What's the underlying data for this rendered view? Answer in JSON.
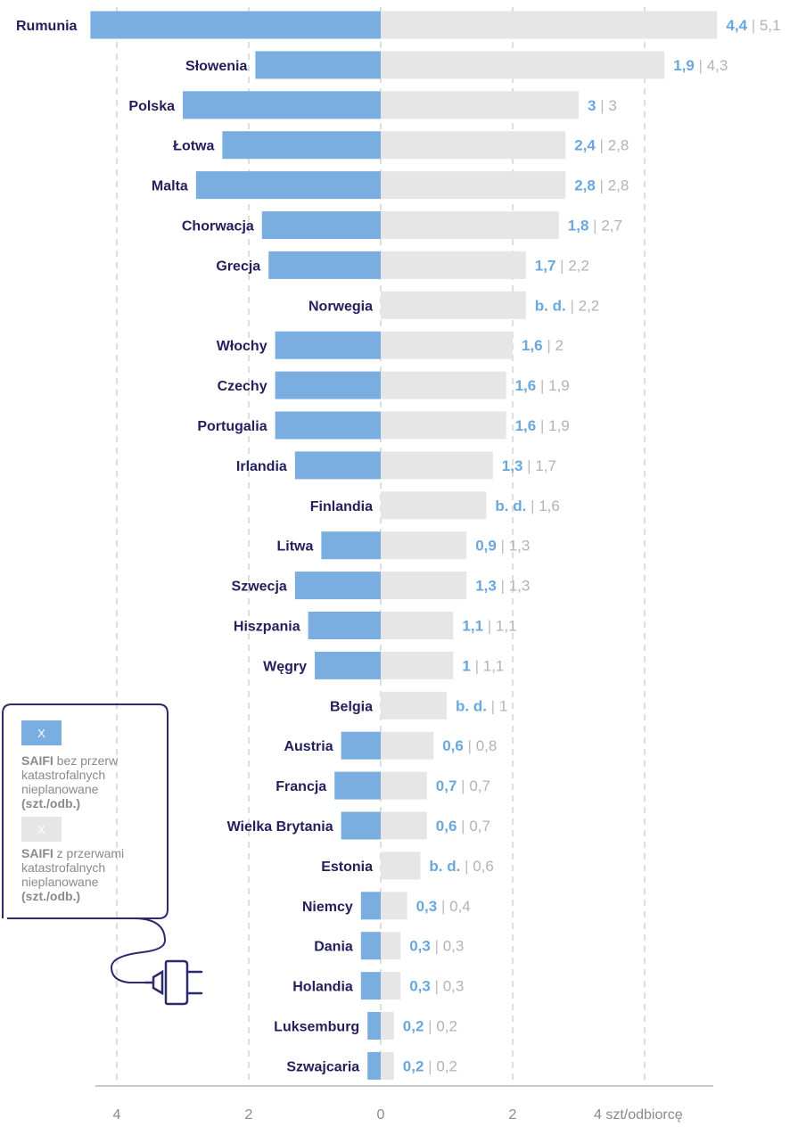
{
  "colors": {
    "series_a": "#7aaee0",
    "series_b": "#e6e6e6",
    "label": "#24205e",
    "frame": "#2e2a6e"
  },
  "legend": {
    "items": [
      {
        "marker": "X",
        "bold": "SAIFI",
        "text": " bez przerw",
        "lines": [
          "katastrofalnych",
          "nieplanowane"
        ],
        "unit": "(szt./odb.)"
      },
      {
        "marker": "X",
        "bold": "SAIFI",
        "text": " z przerwami",
        "lines": [
          "katastrofalnych",
          "nieplanowane"
        ],
        "unit": "(szt./odb.)"
      }
    ],
    "icon": "electric-plug-icon"
  },
  "chart_data": {
    "type": "bar",
    "orientation": "horizontal-diverging",
    "categories": [
      "Rumunia",
      "Słowenia",
      "Polska",
      "Łotwa",
      "Malta",
      "Chorwacja",
      "Grecja",
      "Norwegia",
      "Włochy",
      "Czechy",
      "Portugalia",
      "Irlandia",
      "Finlandia",
      "Litwa",
      "Szwecja",
      "Hiszpania",
      "Węgry",
      "Belgia",
      "Austria",
      "Francja",
      "Wielka Brytania",
      "Estonia",
      "Niemcy",
      "Dania",
      "Holandia",
      "Luksemburg",
      "Szwajcaria"
    ],
    "series": [
      {
        "name": "SAIFI bez przerw katastrofalnych nieplanowane (szt./odb.)",
        "side": "left",
        "values": [
          4.4,
          1.9,
          3,
          2.4,
          2.8,
          1.8,
          1.7,
          null,
          1.6,
          1.6,
          1.6,
          1.3,
          null,
          0.9,
          1.3,
          1.1,
          1,
          null,
          0.6,
          0.7,
          0.6,
          null,
          0.3,
          0.3,
          0.3,
          0.2,
          0.2
        ],
        "labels": [
          "4,4",
          "1,9",
          "3",
          "2,4",
          "2,8",
          "1,8",
          "1,7",
          "b. d.",
          "1,6",
          "1,6",
          "1,6",
          "1,3",
          "b. d.",
          "0,9",
          "1,3",
          "1,1",
          "1",
          "b. d.",
          "0,6",
          "0,7",
          "0,6",
          "b. d.",
          "0,3",
          "0,3",
          "0,3",
          "0,2",
          "0,2"
        ]
      },
      {
        "name": "SAIFI z przerwami katastrofalnych nieplanowane (szt./odb.)",
        "side": "right",
        "values": [
          5.1,
          4.3,
          3,
          2.8,
          2.8,
          2.7,
          2.2,
          2.2,
          2,
          1.9,
          1.9,
          1.7,
          1.6,
          1.3,
          1.3,
          1.1,
          1.1,
          1,
          0.8,
          0.7,
          0.7,
          0.6,
          0.4,
          0.3,
          0.3,
          0.2,
          0.2
        ],
        "labels": [
          "5,1",
          "4,3",
          "3",
          "2,8",
          "2,8",
          "2,7",
          "2,2",
          "2,2",
          "2",
          "1,9",
          "1,9",
          "1,7",
          "1,6",
          "1,3",
          "1,3",
          "1,1",
          "1,1",
          "1",
          "0,8",
          "0,7",
          "0,7",
          "0,6",
          "0,4",
          "0,3",
          "0,3",
          "0,2",
          "0,2"
        ]
      }
    ],
    "separator": "|",
    "xaxis": {
      "ticks": [
        -4,
        -2,
        0,
        2,
        4
      ],
      "tick_labels": [
        "4",
        "2",
        "0",
        "2",
        "4 szt/odbiorcę"
      ]
    },
    "xlim": [
      -4.3,
      5.1
    ],
    "grid": "vertical dashed"
  }
}
